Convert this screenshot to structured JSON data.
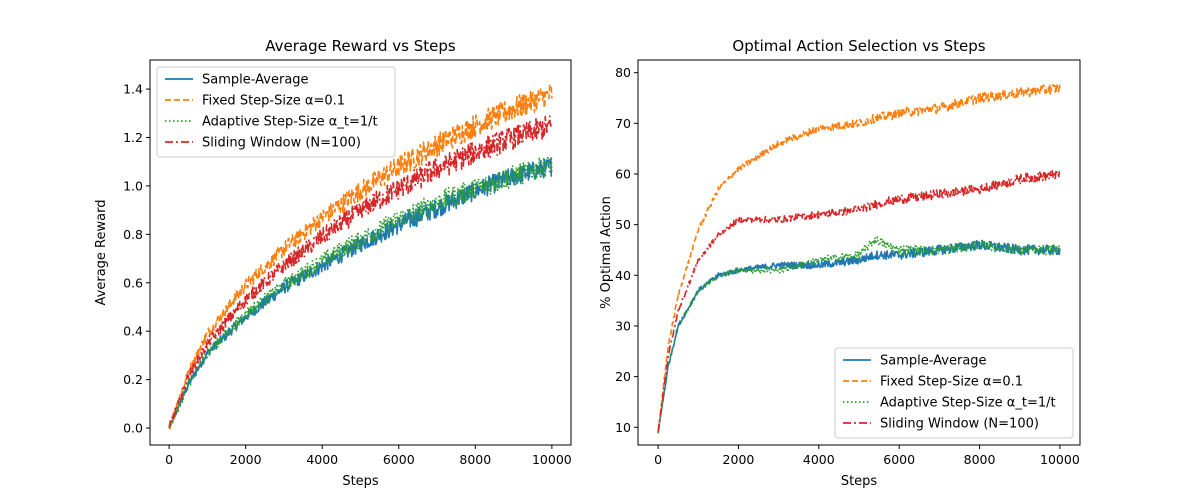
{
  "chart_data": [
    {
      "type": "line",
      "title": "Average Reward vs Steps",
      "xlabel": "Steps",
      "ylabel": "Average Reward",
      "xlim": [
        -500,
        10500
      ],
      "ylim": [
        -0.07,
        1.52
      ],
      "xticks": [
        0,
        2000,
        4000,
        6000,
        8000,
        10000
      ],
      "yticks": [
        0.0,
        0.2,
        0.4,
        0.6,
        0.8,
        1.0,
        1.2,
        1.4
      ],
      "ytick_decimals": 1,
      "grid": false,
      "legend_position": "upper-left",
      "x": [
        0,
        500,
        1000,
        2000,
        3000,
        4000,
        5000,
        6000,
        7000,
        8000,
        9000,
        10000
      ],
      "series": [
        {
          "name": "Sample-Average",
          "color": "#1f77b4",
          "dash": "",
          "noise": 0.025,
          "values": [
            0.0,
            0.18,
            0.31,
            0.46,
            0.58,
            0.67,
            0.76,
            0.84,
            0.91,
            0.98,
            1.04,
            1.08
          ]
        },
        {
          "name": "Fixed Step-Size α=0.1",
          "color": "#ff7f0e",
          "dash": "6,3",
          "noise": 0.03,
          "values": [
            0.0,
            0.23,
            0.39,
            0.59,
            0.74,
            0.87,
            0.98,
            1.08,
            1.17,
            1.25,
            1.32,
            1.38
          ]
        },
        {
          "name": "Adaptive Step-Size α_t=1/t",
          "color": "#2ca02c",
          "dash": "1.5,2.5",
          "noise": 0.028,
          "values": [
            0.0,
            0.18,
            0.31,
            0.47,
            0.59,
            0.69,
            0.78,
            0.86,
            0.93,
            0.99,
            1.04,
            1.09
          ]
        },
        {
          "name": "Sliding Window (N=100)",
          "color": "#d62728",
          "dash": "8,3,2,3",
          "noise": 0.03,
          "values": [
            0.0,
            0.21,
            0.35,
            0.53,
            0.67,
            0.79,
            0.9,
            0.99,
            1.07,
            1.14,
            1.2,
            1.25
          ]
        }
      ]
    },
    {
      "type": "line",
      "title": "Optimal Action Selection vs Steps",
      "xlabel": "Steps",
      "ylabel": "% Optimal Action",
      "xlim": [
        -500,
        10500
      ],
      "ylim": [
        6.5,
        82.5
      ],
      "xticks": [
        0,
        2000,
        4000,
        6000,
        8000,
        10000
      ],
      "yticks": [
        10,
        20,
        30,
        40,
        50,
        60,
        70,
        80
      ],
      "ytick_decimals": 0,
      "grid": false,
      "legend_position": "lower-right",
      "x": [
        0,
        250,
        500,
        1000,
        1500,
        2000,
        3000,
        4000,
        5000,
        5400,
        6000,
        7000,
        8000,
        9000,
        10000
      ],
      "series": [
        {
          "name": "Sample-Average",
          "color": "#1f77b4",
          "dash": "",
          "noise": 0.6,
          "values": [
            9,
            22,
            30,
            37,
            40,
            41,
            42,
            42,
            43,
            44,
            44,
            45,
            46,
            45,
            45
          ]
        },
        {
          "name": "Fixed Step-Size α=0.1",
          "color": "#ff7f0e",
          "dash": "6,3",
          "noise": 0.6,
          "values": [
            9,
            26,
            36,
            49,
            57,
            61,
            66,
            69,
            70,
            71,
            72,
            73,
            75,
            76,
            77
          ]
        },
        {
          "name": "Adaptive Step-Size α_t=1/t",
          "color": "#2ca02c",
          "dash": "1.5,2.5",
          "noise": 0.6,
          "values": [
            9,
            22,
            30,
            37,
            40,
            41,
            41,
            43,
            44,
            47,
            45,
            45,
            46,
            45,
            45
          ]
        },
        {
          "name": "Sliding Window (N=100)",
          "color": "#d62728",
          "dash": "8,3,2,3",
          "noise": 0.6,
          "values": [
            9,
            24,
            33,
            43,
            48,
            51,
            51,
            52,
            53,
            54,
            55,
            56,
            57,
            59,
            60
          ]
        }
      ]
    }
  ]
}
